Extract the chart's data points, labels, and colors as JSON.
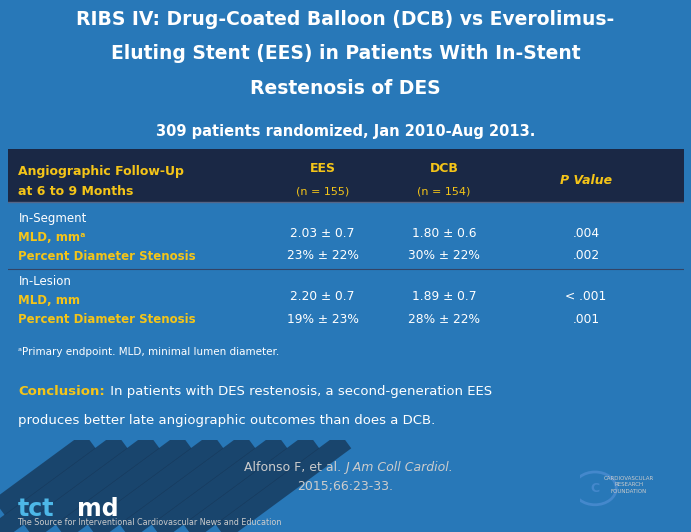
{
  "title_line1": "RIBS IV: Drug-Coated Balloon (DCB) vs Everolimus-",
  "title_line2": "Eluting Stent (EES) in Patients With In-Stent",
  "title_line3": "Restenosis of DES",
  "subtitle": "309 patients randomized, Jan 2010-Aug 2013.",
  "row1_label1": "In-Segment",
  "row1_label2": "MLD, mmᵃ",
  "row1_label3": "Percent Diameter Stenosis",
  "row1_ees1": "2.03 ± 0.7",
  "row1_ees2": "23% ± 22%",
  "row1_dcb1": "1.80 ± 0.6",
  "row1_dcb2": "30% ± 22%",
  "row1_p1": ".004",
  "row1_p2": ".002",
  "row2_label1": "In-Lesion",
  "row2_label2": "MLD, mm",
  "row2_label3": "Percent Diameter Stenosis",
  "row2_ees1": "2.20 ± 0.7",
  "row2_ees2": "19% ± 23%",
  "row2_dcb1": "1.89 ± 0.7",
  "row2_dcb2": "28% ± 22%",
  "row2_p1": "< .001",
  "row2_p2": ".001",
  "footnote": "ᵃPrimary endpoint. MLD, minimal lumen diameter.",
  "conclusion_bold": "Conclusion:",
  "conclusion_rest1": " In patients with DES restenosis, a second-generation EES",
  "conclusion_rest2": "produces better late angiographic outcomes than does a DCB.",
  "footer_text": "The Source for Interventional Cardiovascular News and Education",
  "bg_blue": "#2878b8",
  "bg_dark": "#0d1a2e",
  "bg_header": "#1a2845",
  "bg_conclusion": "#111e30",
  "bg_footer": "#1a3a5c",
  "yellow": "#f5c518",
  "white": "#ffffff",
  "light_gray": "#cccccc",
  "tct_blue": "#4db8e8"
}
